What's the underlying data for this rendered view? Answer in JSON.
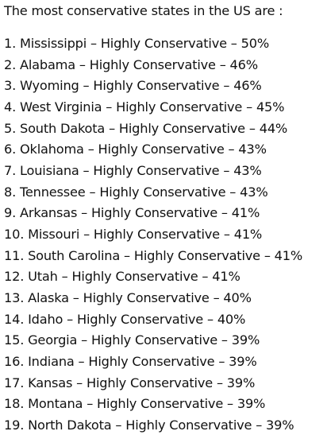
{
  "title": "The most conservative states in the US are :",
  "items": [
    "1. Mississippi – Highly Conservative – 50%",
    "2. Alabama – Highly Conservative – 46%",
    "3. Wyoming – Highly Conservative – 46%",
    "4. West Virginia – Highly Conservative – 45%",
    "5. South Dakota – Highly Conservative – 44%",
    "6. Oklahoma – Highly Conservative – 43%",
    "7. Louisiana – Highly Conservative – 43%",
    "8. Tennessee – Highly Conservative – 43%",
    "9. Arkansas – Highly Conservative – 41%",
    "10. Missouri – Highly Conservative – 41%",
    "11. South Carolina – Highly Conservative – 41%",
    "12. Utah – Highly Conservative – 41%",
    "13. Alaska – Highly Conservative – 40%",
    "14. Idaho – Highly Conservative – 40%",
    "15. Georgia – Highly Conservative – 39%",
    "16. Indiana – Highly Conservative – 39%",
    "17. Kansas – Highly Conservative – 39%",
    "18. Montana – Highly Conservative – 39%",
    "19. North Dakota – Highly Conservative – 39%"
  ]
}
